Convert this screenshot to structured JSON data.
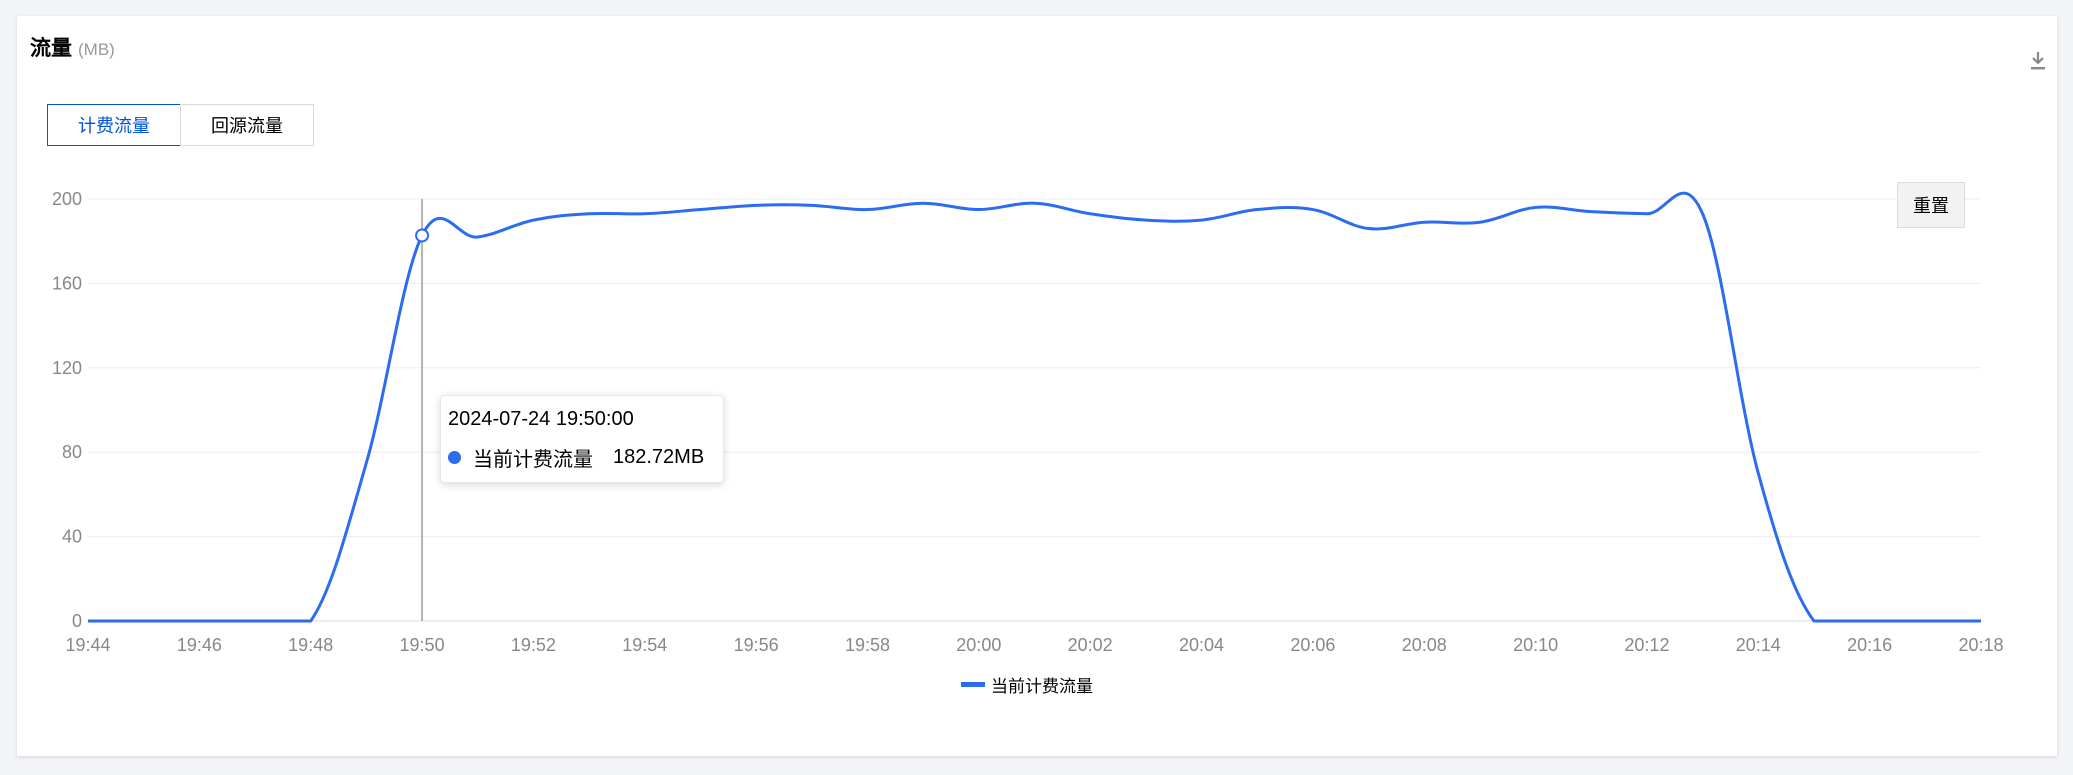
{
  "header": {
    "title": "流量",
    "unit": "(MB)"
  },
  "tabs": [
    {
      "label": "计费流量",
      "active": true
    },
    {
      "label": "回源流量",
      "active": false
    }
  ],
  "reset_label": "重置",
  "tooltip": {
    "time": "2024-07-24 19:50:00",
    "series": "当前计费流量",
    "value": "182.72MB"
  },
  "icons": {
    "download": "download-icon"
  },
  "colors": {
    "line": "#2b6cf0",
    "active_tab": "#0052d9"
  },
  "chart_data": {
    "type": "line",
    "x_ticks": [
      "19:44",
      "19:46",
      "19:48",
      "19:50",
      "19:52",
      "19:54",
      "19:56",
      "19:58",
      "20:00",
      "20:02",
      "20:04",
      "20:06",
      "20:08",
      "20:10",
      "20:12",
      "20:14",
      "20:16",
      "20:18"
    ],
    "x": [
      "19:44",
      "19:45",
      "19:46",
      "19:47",
      "19:48",
      "19:49",
      "19:50",
      "19:51",
      "19:52",
      "19:53",
      "19:54",
      "19:55",
      "19:56",
      "19:57",
      "19:58",
      "19:59",
      "20:00",
      "20:01",
      "20:02",
      "20:03",
      "20:04",
      "20:05",
      "20:06",
      "20:07",
      "20:08",
      "20:09",
      "20:10",
      "20:11",
      "20:12",
      "20:13",
      "20:14",
      "20:15",
      "20:16",
      "20:17",
      "20:18"
    ],
    "series": [
      {
        "name": "当前计费流量",
        "values": [
          0,
          0,
          0,
          0,
          0,
          75,
          182.72,
          182,
          190,
          193,
          193,
          195,
          197,
          197,
          195,
          198,
          195,
          198,
          193,
          190,
          190,
          195,
          195,
          186,
          189,
          189,
          196,
          194,
          193,
          193,
          70,
          0,
          0,
          0,
          0
        ]
      }
    ],
    "ylim": [
      0,
      200
    ],
    "y_ticks": [
      0,
      40,
      80,
      120,
      160,
      200
    ],
    "grid": true,
    "legend": "bottom-center",
    "highlight_index": 6
  }
}
